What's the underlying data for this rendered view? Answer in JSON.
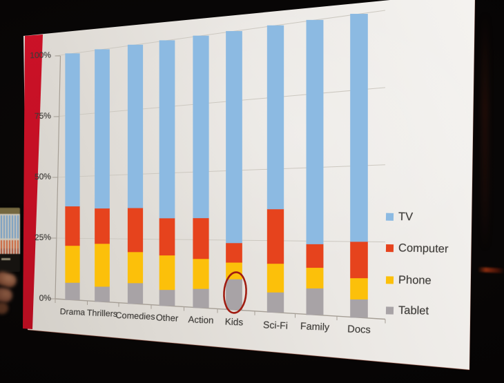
{
  "chart_data": {
    "type": "bar",
    "subtype": "100-percent-stacked-column",
    "categories": [
      "Drama",
      "Thrillers",
      "Comedies",
      "Other",
      "Action",
      "Kids",
      "Sci-Fi",
      "Family",
      "Docs"
    ],
    "series": [
      {
        "name": "TV",
        "color": "#8cbae2",
        "values": [
          62,
          63,
          63,
          67,
          67,
          76,
          64,
          76,
          75
        ]
      },
      {
        "name": "Computer",
        "color": "#e6431d",
        "values": [
          16,
          14,
          17,
          14,
          15,
          7,
          19,
          8,
          12
        ]
      },
      {
        "name": "Phone",
        "color": "#fcc00a",
        "values": [
          15,
          17,
          12,
          13,
          11,
          6,
          10,
          7,
          7
        ]
      },
      {
        "name": "Tablet",
        "color": "#a8a3a6",
        "values": [
          7,
          6,
          8,
          6,
          7,
          11,
          7,
          9,
          6
        ]
      }
    ],
    "stack_order_bottom_to_top": [
      "Tablet",
      "Phone",
      "Computer",
      "TV"
    ],
    "y_ticks": [
      "100%",
      "75%",
      "50%",
      "25%",
      "0%"
    ],
    "ylim": [
      0,
      100
    ],
    "grid": true,
    "legend_position": "right",
    "annotation": {
      "type": "ellipse",
      "color": "#a01d12",
      "category": "Kids",
      "series": "Tablet"
    }
  },
  "slide": {
    "accent_stripe_color": "#c31124",
    "background_color": "#ebe8e4",
    "text_color": "#3d3b38",
    "gridline_color": "#ccc8c0",
    "axis_color": "#a59e95"
  },
  "photo": {
    "background_color": "#070505"
  }
}
